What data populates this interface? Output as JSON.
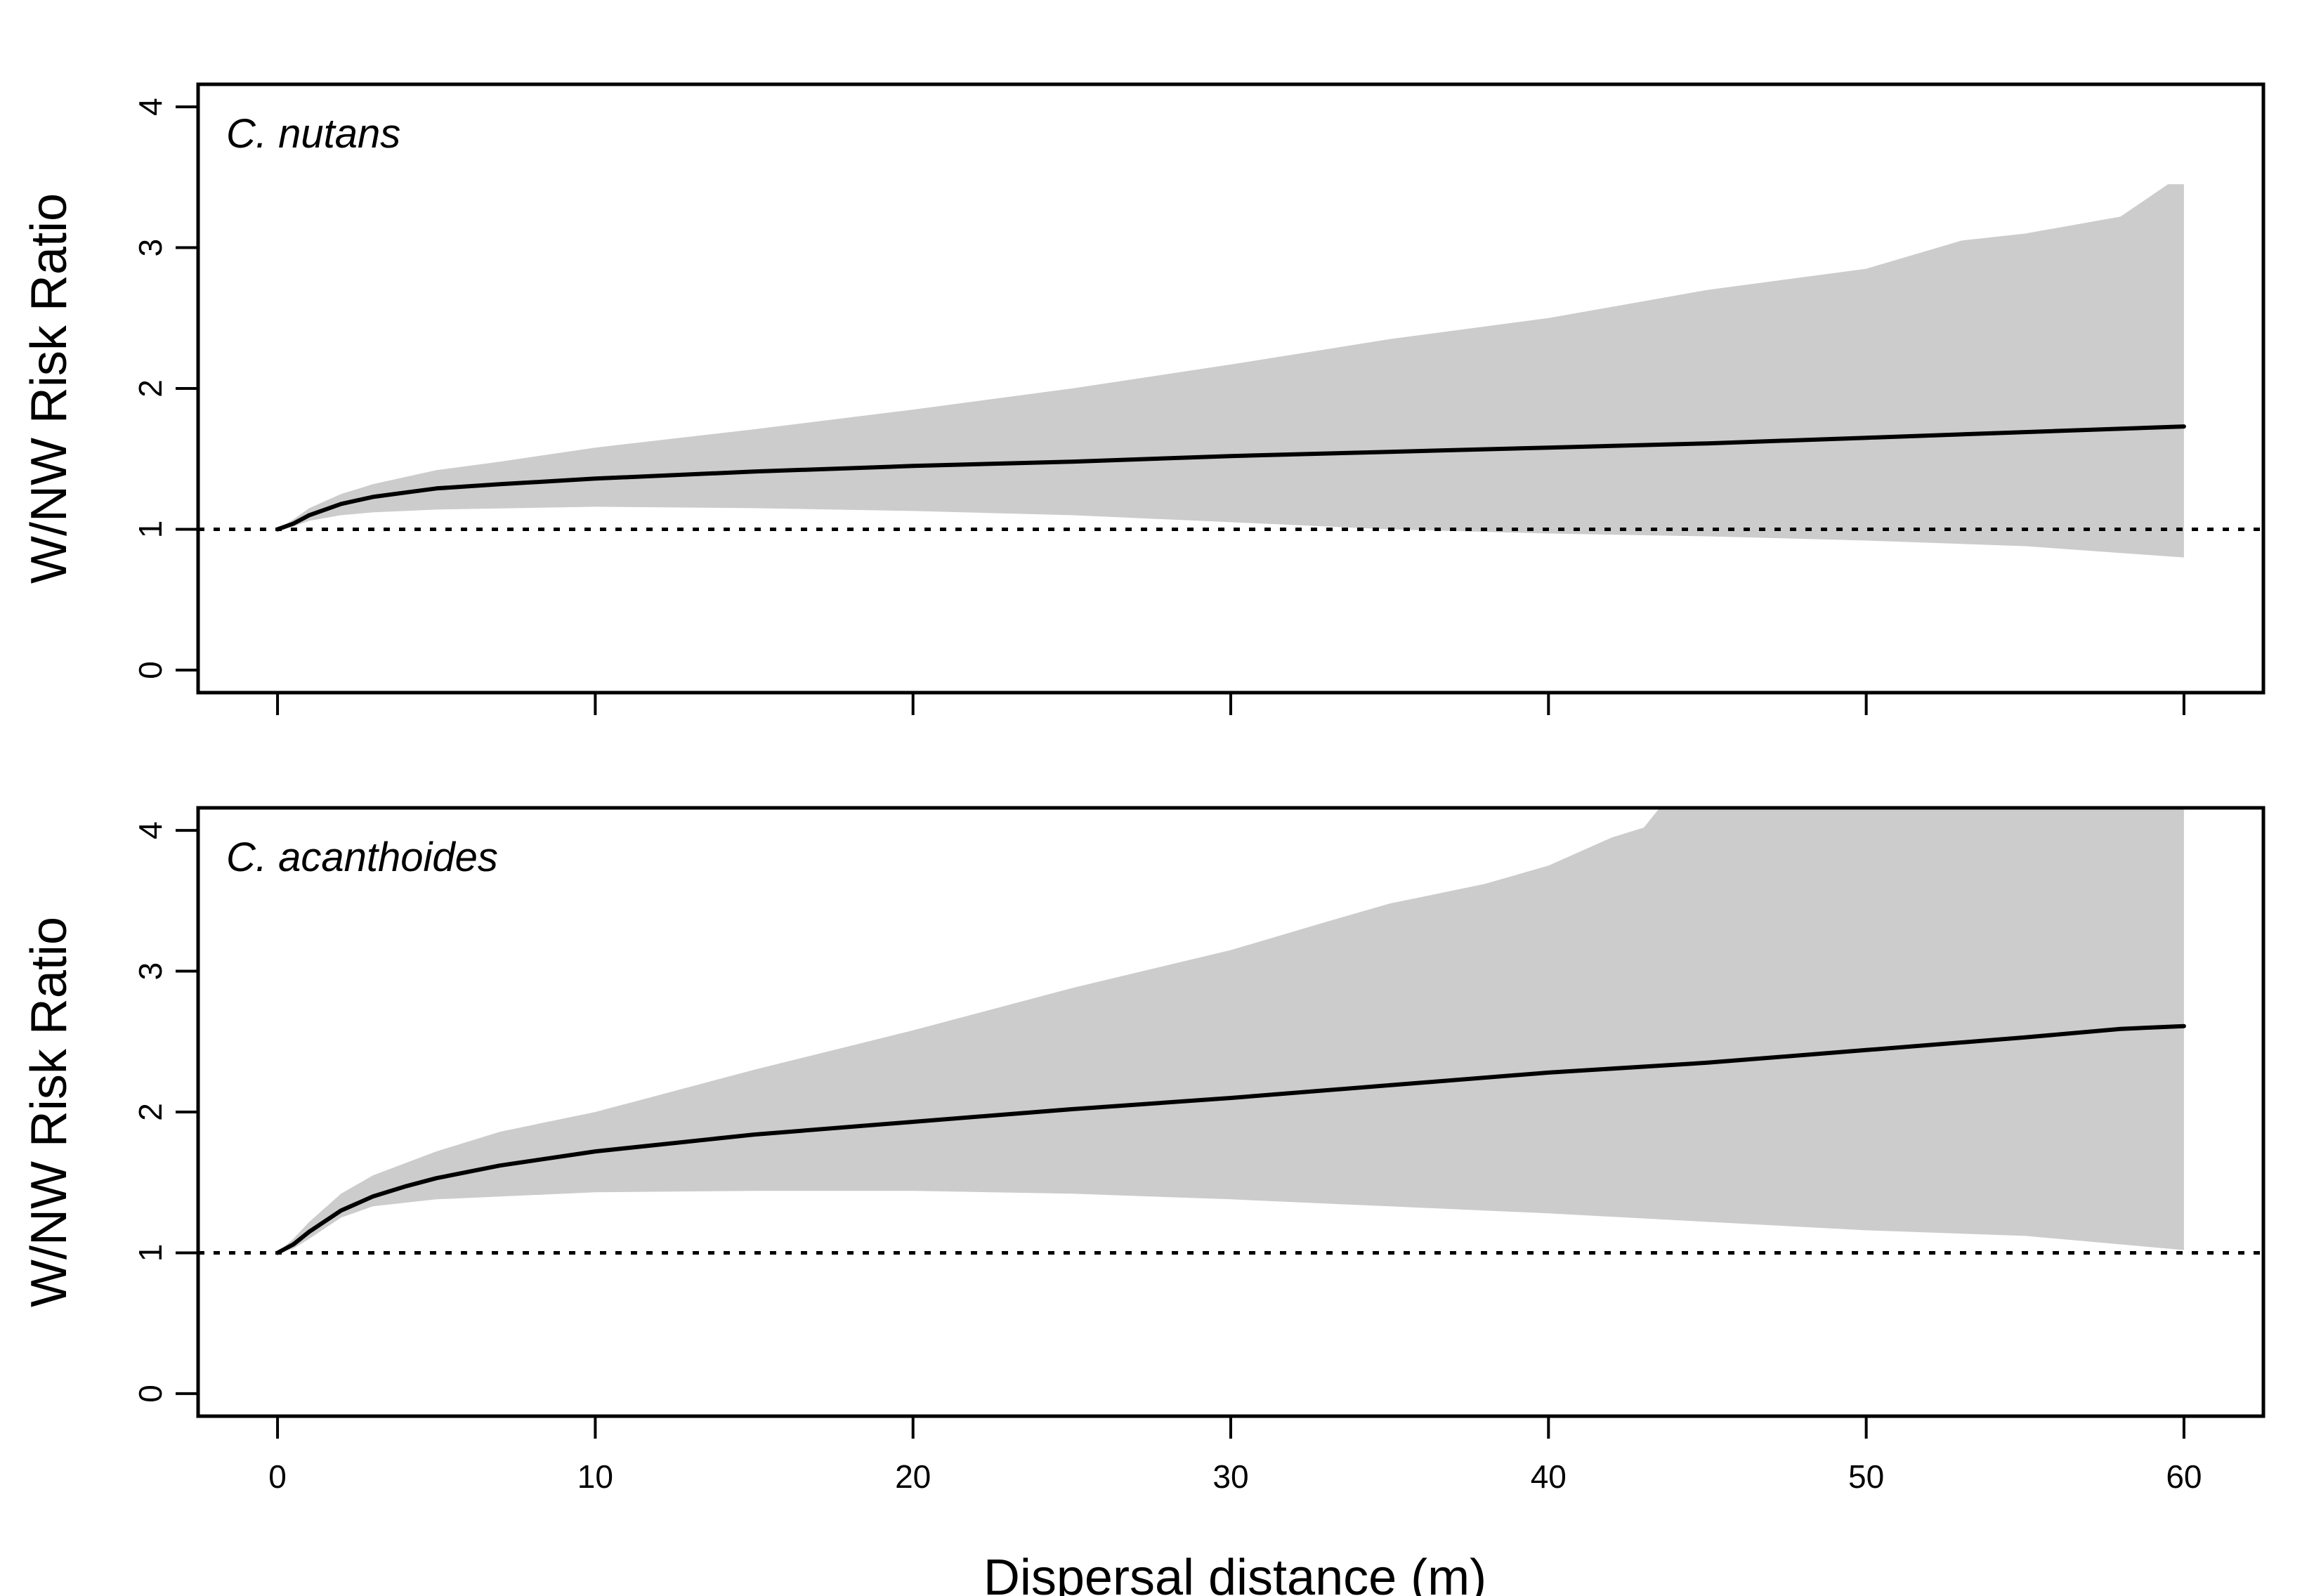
{
  "chart_data": [
    {
      "type": "area",
      "panel_label": "C. nutans",
      "ylabel": "W/NW Risk Ratio",
      "xlabel": "",
      "xlim": [
        -2.5,
        62.5
      ],
      "ylim": [
        -0.16,
        4.16
      ],
      "xticks": [
        0,
        10,
        20,
        30,
        40,
        50,
        60
      ],
      "yticks": [
        "0",
        "1",
        "2",
        "3",
        "4"
      ],
      "reference_line": {
        "y": 1,
        "style": "dotted"
      },
      "band_color": "#cccccc",
      "line_color": "#000000",
      "series": [
        {
          "kind": "mean",
          "x": [
            0,
            0.5,
            1,
            2,
            3,
            4,
            5,
            7,
            10,
            15,
            20,
            25,
            30,
            35,
            40,
            45,
            50,
            55,
            60
          ],
          "values": [
            1.0,
            1.04,
            1.1,
            1.18,
            1.23,
            1.26,
            1.29,
            1.32,
            1.36,
            1.41,
            1.45,
            1.48,
            1.52,
            1.55,
            1.58,
            1.61,
            1.65,
            1.69,
            1.73
          ]
        },
        {
          "kind": "upper",
          "x": [
            0,
            0.5,
            1,
            2,
            3,
            4,
            5,
            7,
            10,
            15,
            20,
            25,
            30,
            35,
            40,
            45,
            50,
            53,
            55,
            58,
            59.5,
            60
          ],
          "values": [
            1.0,
            1.07,
            1.15,
            1.25,
            1.32,
            1.37,
            1.42,
            1.48,
            1.58,
            1.71,
            1.85,
            2.0,
            2.17,
            2.35,
            2.5,
            2.7,
            2.85,
            3.05,
            3.1,
            3.22,
            3.45,
            3.45
          ]
        },
        {
          "kind": "lower",
          "x": [
            0,
            0.5,
            1,
            2,
            3,
            5,
            10,
            15,
            20,
            25,
            30,
            35,
            40,
            45,
            50,
            55,
            60
          ],
          "values": [
            1.0,
            1.02,
            1.06,
            1.1,
            1.12,
            1.14,
            1.16,
            1.15,
            1.13,
            1.1,
            1.05,
            1.0,
            0.97,
            0.95,
            0.92,
            0.88,
            0.8
          ]
        }
      ]
    },
    {
      "type": "area",
      "panel_label": "C. acanthoides",
      "ylabel": "W/NW Risk Ratio",
      "xlabel": "Dispersal distance (m)",
      "xlim": [
        -2.5,
        62.5
      ],
      "ylim": [
        -0.16,
        4.16
      ],
      "xticks": [
        0,
        10,
        20,
        30,
        40,
        50,
        60
      ],
      "xticklabels": [
        "0",
        "10",
        "20",
        "30",
        "40",
        "50",
        "60"
      ],
      "yticks": [
        "0",
        "1",
        "2",
        "3",
        "4"
      ],
      "reference_line": {
        "y": 1,
        "style": "dotted"
      },
      "band_color": "#cccccc",
      "line_color": "#000000",
      "series": [
        {
          "kind": "mean",
          "x": [
            0,
            0.5,
            1,
            2,
            3,
            4,
            5,
            7,
            10,
            15,
            20,
            25,
            30,
            35,
            40,
            45,
            50,
            55,
            58,
            60
          ],
          "values": [
            1.0,
            1.06,
            1.15,
            1.3,
            1.4,
            1.47,
            1.53,
            1.62,
            1.72,
            1.84,
            1.93,
            2.02,
            2.1,
            2.19,
            2.28,
            2.35,
            2.44,
            2.53,
            2.59,
            2.61
          ]
        },
        {
          "kind": "upper",
          "x": [
            0,
            0.5,
            1,
            2,
            3,
            5,
            7,
            10,
            15,
            20,
            25,
            30,
            33,
            35,
            38,
            40,
            42,
            43,
            43.5,
            60
          ],
          "values": [
            1.0,
            1.1,
            1.22,
            1.42,
            1.55,
            1.72,
            1.86,
            2.0,
            2.3,
            2.58,
            2.88,
            3.15,
            3.35,
            3.48,
            3.62,
            3.75,
            3.95,
            4.02,
            4.16,
            4.16
          ]
        },
        {
          "kind": "lower",
          "x": [
            0,
            0.5,
            1,
            2,
            3,
            5,
            10,
            15,
            20,
            25,
            30,
            35,
            40,
            45,
            50,
            55,
            60
          ],
          "values": [
            1.0,
            1.03,
            1.1,
            1.25,
            1.33,
            1.38,
            1.43,
            1.44,
            1.44,
            1.42,
            1.38,
            1.33,
            1.28,
            1.22,
            1.16,
            1.12,
            1.02
          ]
        }
      ]
    }
  ]
}
